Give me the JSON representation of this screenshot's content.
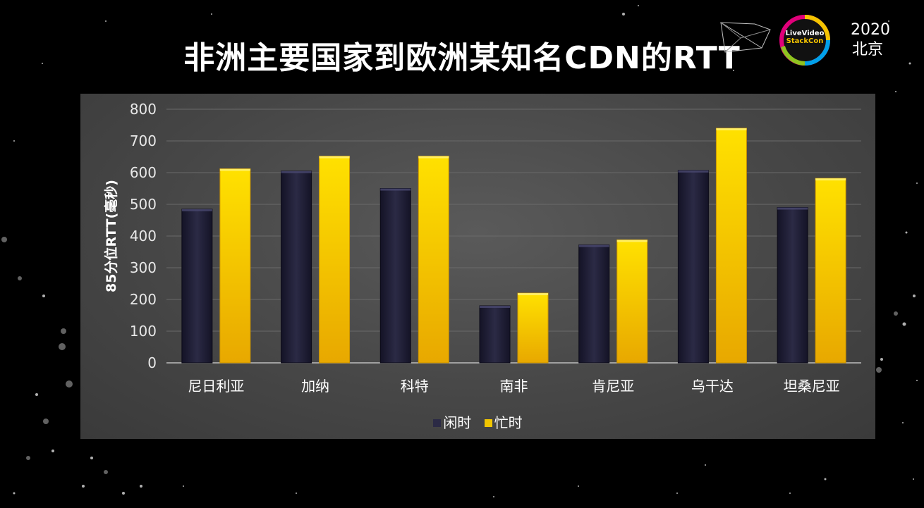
{
  "slide": {
    "title": "非洲主要国家到欧洲某知名CDN的RTT",
    "event_year": "2020",
    "event_city": "北京",
    "logo_line1": "LiveVideo",
    "logo_line2": "StackCon"
  },
  "colors": {
    "idle": "#2b2a45",
    "busy": "#f2c600",
    "panel": "#474747",
    "grid": "#6a6a6a",
    "text": "#ffffff"
  },
  "chart_data": {
    "type": "bar",
    "title": "",
    "xlabel": "",
    "ylabel": "85分位RTT(毫秒)",
    "ylim": [
      0,
      800
    ],
    "yticks": [
      0,
      100,
      200,
      300,
      400,
      500,
      600,
      700,
      800
    ],
    "grid": true,
    "legend_position": "bottom",
    "categories": [
      "尼日利亚",
      "加纳",
      "科特",
      "南非",
      "肯尼亚",
      "乌干达",
      "坦桑尼亚"
    ],
    "series": [
      {
        "name": "闲时",
        "color": "#2b2a45",
        "values": [
          485,
          605,
          550,
          180,
          372,
          607,
          490
        ]
      },
      {
        "name": "忙时",
        "color": "#f2c600",
        "values": [
          612,
          652,
          652,
          220,
          388,
          740,
          582
        ]
      }
    ]
  }
}
